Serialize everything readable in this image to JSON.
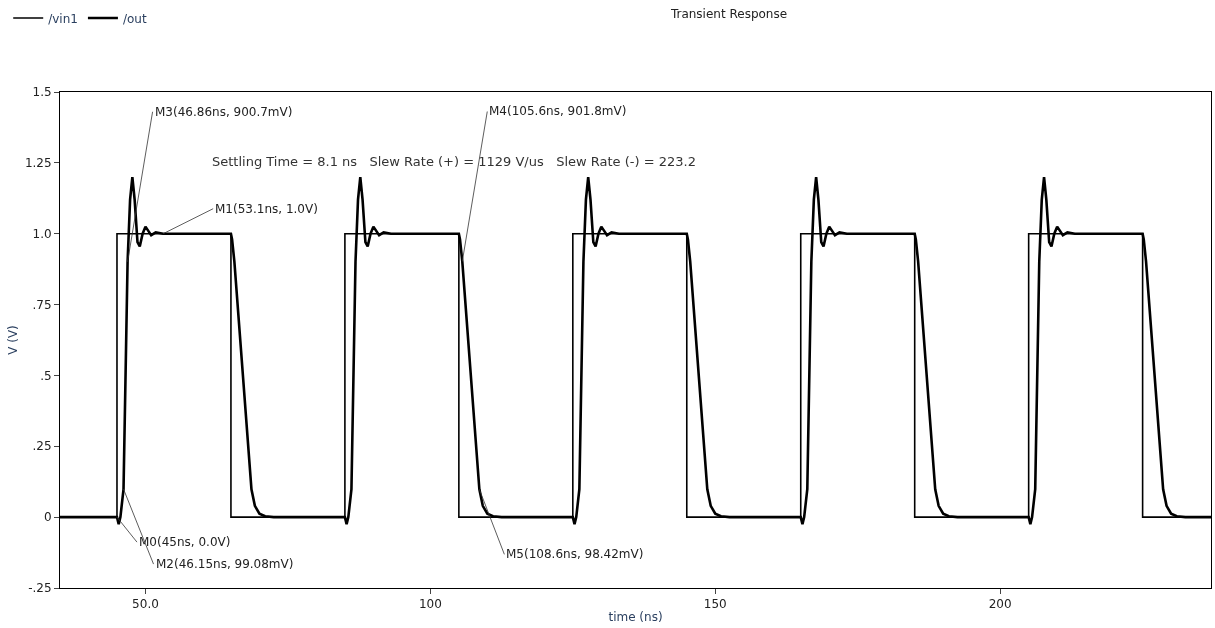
{
  "chart_data": {
    "type": "line",
    "title": "Transient Response",
    "xlabel": "time (ns)",
    "ylabel": "V (V)",
    "series": [
      {
        "name": "/vin1",
        "color": "#000000",
        "type": "step",
        "x": [
          35,
          45,
          65,
          85,
          105,
          125,
          145,
          165,
          185,
          205,
          225,
          237
        ],
        "values": [
          0,
          1,
          0,
          1,
          0,
          1,
          0,
          1,
          0,
          1,
          0,
          0
        ]
      },
      {
        "name": "/out",
        "color": "#000000",
        "x": [
          35,
          45,
          45.3,
          45.6,
          46.15,
          46.86,
          47.3,
          47.7,
          48.1,
          48.6,
          49,
          49.5,
          50,
          50.5,
          51,
          51.8,
          53.1,
          65,
          65.2,
          65.6,
          68.6,
          69.2,
          70,
          71,
          72.5,
          85,
          85.3,
          85.6,
          86.15,
          86.86,
          87.3,
          87.7,
          88.1,
          88.6,
          89,
          89.5,
          90,
          90.5,
          91,
          91.8,
          93.1,
          105,
          105.2,
          105.6,
          108.6,
          109.2,
          110,
          111,
          112.5,
          125,
          125.3,
          125.6,
          126.15,
          126.86,
          127.3,
          127.7,
          128.1,
          128.6,
          129,
          129.5,
          130,
          130.5,
          131,
          131.8,
          133.1,
          145,
          145.2,
          145.6,
          148.6,
          149.2,
          150,
          151,
          152.5,
          165,
          165.3,
          165.6,
          166.15,
          166.86,
          167.3,
          167.7,
          168.1,
          168.6,
          169,
          169.5,
          170,
          170.5,
          171,
          171.8,
          173.1,
          185,
          185.2,
          185.6,
          188.6,
          189.2,
          190,
          191,
          192.5,
          205,
          205.3,
          205.6,
          206.15,
          206.86,
          207.3,
          207.7,
          208.1,
          208.6,
          209,
          209.5,
          210,
          210.5,
          211,
          211.8,
          213.1,
          225,
          225.2,
          225.6,
          228.6,
          229.2,
          230,
          231,
          232.5,
          237
        ],
        "values": [
          0,
          0,
          -0.025,
          0,
          0.099,
          0.901,
          1.12,
          1.2,
          1.12,
          0.97,
          0.955,
          1.0,
          1.025,
          1.01,
          0.995,
          1.005,
          1.0,
          1.0,
          0.98,
          0.902,
          0.098,
          0.04,
          0.012,
          0.003,
          0,
          0,
          -0.025,
          0,
          0.099,
          0.901,
          1.12,
          1.2,
          1.12,
          0.97,
          0.955,
          1.0,
          1.025,
          1.01,
          0.995,
          1.005,
          1.0,
          1.0,
          0.98,
          0.902,
          0.098,
          0.04,
          0.012,
          0.003,
          0,
          0,
          -0.025,
          0,
          0.099,
          0.901,
          1.12,
          1.2,
          1.12,
          0.97,
          0.955,
          1.0,
          1.025,
          1.01,
          0.995,
          1.005,
          1.0,
          1.0,
          0.98,
          0.902,
          0.098,
          0.04,
          0.012,
          0.003,
          0,
          0,
          -0.025,
          0,
          0.099,
          0.901,
          1.12,
          1.2,
          1.12,
          0.97,
          0.955,
          1.0,
          1.025,
          1.01,
          0.995,
          1.005,
          1.0,
          1.0,
          0.98,
          0.902,
          0.098,
          0.04,
          0.012,
          0.003,
          0,
          0,
          -0.025,
          0,
          0.099,
          0.901,
          1.12,
          1.2,
          1.12,
          0.97,
          0.955,
          1.0,
          1.025,
          1.01,
          0.995,
          1.005,
          1.0,
          1.0,
          0.98,
          0.902,
          0.098,
          0.04,
          0.012,
          0.003,
          0,
          0
        ]
      }
    ],
    "xlim": [
      35,
      237
    ],
    "xticks": [
      {
        "value": 50,
        "label": "50.0"
      },
      100,
      150,
      200
    ],
    "ylim": [
      -0.25,
      1.5
    ],
    "yticks": [
      {
        "value": -0.25,
        "label": "-.25"
      },
      0,
      {
        "value": 0.25,
        "label": ".25"
      },
      {
        "value": 0.5,
        "label": ".5"
      },
      {
        "value": 0.75,
        "label": ".75"
      },
      {
        "value": 1.0,
        "label": "1.0"
      },
      1.25,
      1.5
    ],
    "legend": "top left",
    "annotations": [
      "Settling Time = 8.1 ns   Slew Rate (+) = 1129 V/us   Slew Rate (-) = 223.2",
      {
        "text": "M0(45ns, 0.0V)",
        "x": 45,
        "y": 0
      },
      {
        "text": "M1(53.1ns, 1.0V)",
        "x": 53.1,
        "y": 1.0
      },
      {
        "text": "M2(46.15ns, 99.08mV)",
        "x": 46.15,
        "y": 0.099
      },
      {
        "text": "M3(46.86ns, 900.7mV)",
        "x": 46.86,
        "y": 0.901
      },
      {
        "text": "M4(105.6ns, 901.8mV)",
        "x": 105.6,
        "y": 0.902
      },
      {
        "text": "M5(108.6ns, 98.42mV)",
        "x": 108.6,
        "y": 0.098
      }
    ]
  }
}
